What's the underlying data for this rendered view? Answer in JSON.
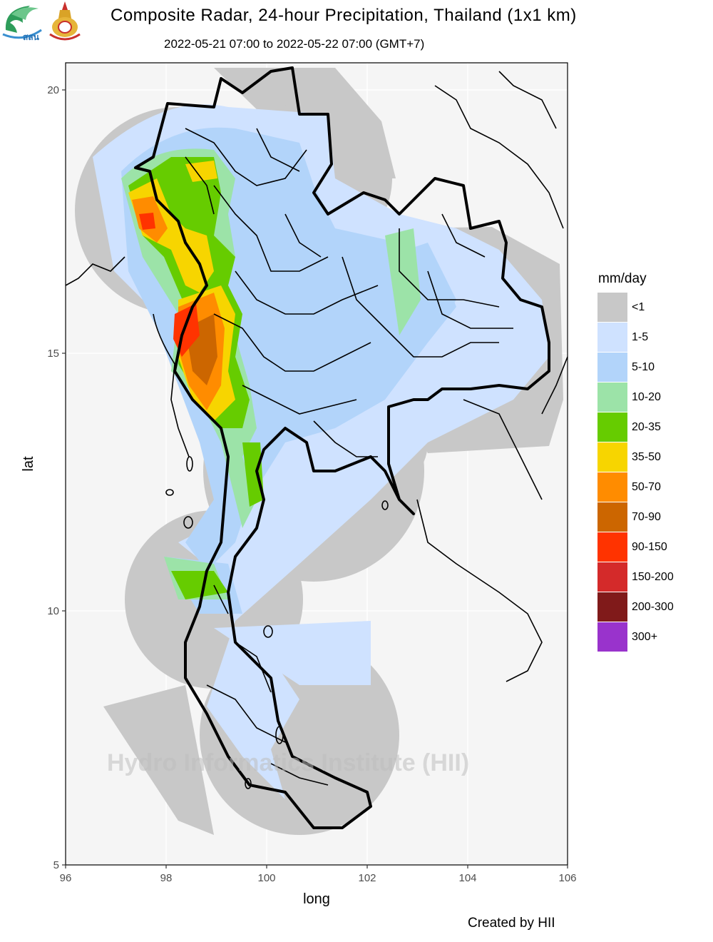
{
  "header": {
    "title": "Composite Radar, 24-hour Precipitation, Thailand (1x1 km)",
    "subtitle": "2022-05-21 07:00 to 2022-05-22 07:00 (GMT+7)"
  },
  "logos": {
    "left_text": "สสน"
  },
  "axes": {
    "x_label": "long",
    "y_label": "lat",
    "x_ticks": [
      "96",
      "98",
      "100",
      "102",
      "104",
      "106"
    ],
    "y_ticks": [
      "20",
      "15",
      "10",
      "5"
    ]
  },
  "legend": {
    "title": "mm/day",
    "items": [
      {
        "label": "<1",
        "color": "#c8c8c8"
      },
      {
        "label": "1-5",
        "color": "#cfe2ff"
      },
      {
        "label": "5-10",
        "color": "#b2d4fa"
      },
      {
        "label": "10-20",
        "color": "#9ce3a8"
      },
      {
        "label": "20-35",
        "color": "#66cc00"
      },
      {
        "label": "35-50",
        "color": "#f7d500"
      },
      {
        "label": "50-70",
        "color": "#ff8c00"
      },
      {
        "label": "70-90",
        "color": "#cc6600"
      },
      {
        "label": "90-150",
        "color": "#ff3300"
      },
      {
        "label": "150-200",
        "color": "#d42a2a"
      },
      {
        "label": "200-300",
        "color": "#801a1a"
      },
      {
        "label": "300+",
        "color": "#9933cc"
      }
    ]
  },
  "watermark": "Hydro Informatics Institute (HII)",
  "credit": "Created by HII"
}
